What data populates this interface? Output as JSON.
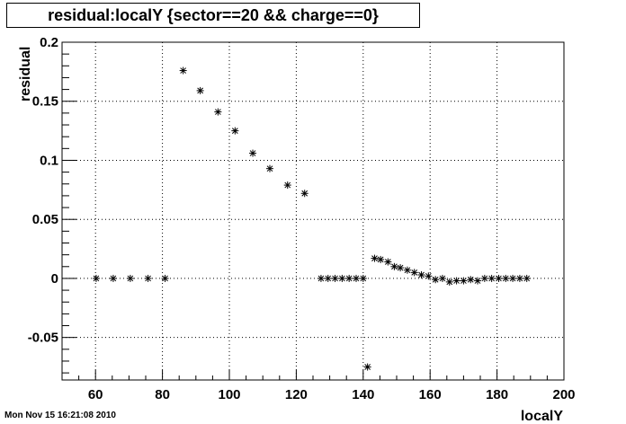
{
  "chart_data": {
    "type": "scatter",
    "title": "residual:localY {sector==20 && charge==0}",
    "xlabel": "localY",
    "ylabel": "residual",
    "xlim": [
      50,
      200
    ],
    "ylim": [
      -0.086,
      0.2
    ],
    "x_ticks": [
      60,
      80,
      100,
      120,
      140,
      160,
      180,
      200
    ],
    "y_ticks": [
      -0.05,
      0,
      0.05,
      0.1,
      0.15,
      0.2
    ],
    "y_tick_labels": [
      "-0.05",
      "0",
      "0.05",
      "0.1",
      "0.15",
      "0.2"
    ],
    "grid": true,
    "marker": "asterisk",
    "points": [
      [
        60.2,
        0.0
      ],
      [
        65.3,
        0.0
      ],
      [
        70.4,
        0.0
      ],
      [
        75.7,
        0.0
      ],
      [
        80.8,
        0.0
      ],
      [
        86.2,
        0.176
      ],
      [
        91.3,
        0.159
      ],
      [
        96.6,
        0.141
      ],
      [
        101.7,
        0.125
      ],
      [
        107.0,
        0.106
      ],
      [
        112.1,
        0.093
      ],
      [
        117.4,
        0.079
      ],
      [
        122.5,
        0.072
      ],
      [
        127.4,
        0.0
      ],
      [
        129.5,
        0.0
      ],
      [
        131.6,
        0.0
      ],
      [
        133.7,
        0.0
      ],
      [
        135.8,
        0.0
      ],
      [
        137.9,
        0.0
      ],
      [
        140.0,
        0.0
      ],
      [
        141.3,
        -0.075
      ],
      [
        143.4,
        0.017
      ],
      [
        145.2,
        0.016
      ],
      [
        147.4,
        0.014
      ],
      [
        149.3,
        0.01
      ],
      [
        151.1,
        0.009
      ],
      [
        153.2,
        0.007
      ],
      [
        155.3,
        0.005
      ],
      [
        157.4,
        0.003
      ],
      [
        159.5,
        0.002
      ],
      [
        161.6,
        -0.001
      ],
      [
        163.7,
        0.0
      ],
      [
        165.8,
        -0.003
      ],
      [
        167.9,
        -0.002
      ],
      [
        170.0,
        -0.002
      ],
      [
        172.1,
        -0.001
      ],
      [
        174.2,
        -0.002
      ],
      [
        176.3,
        0.0
      ],
      [
        178.4,
        0.0
      ],
      [
        180.5,
        0.0
      ],
      [
        182.6,
        0.0
      ],
      [
        184.7,
        0.0
      ],
      [
        186.8,
        0.0
      ],
      [
        188.9,
        0.0
      ]
    ]
  },
  "footer": {
    "timestamp": "Mon Nov 15 16:21:08 2010"
  }
}
